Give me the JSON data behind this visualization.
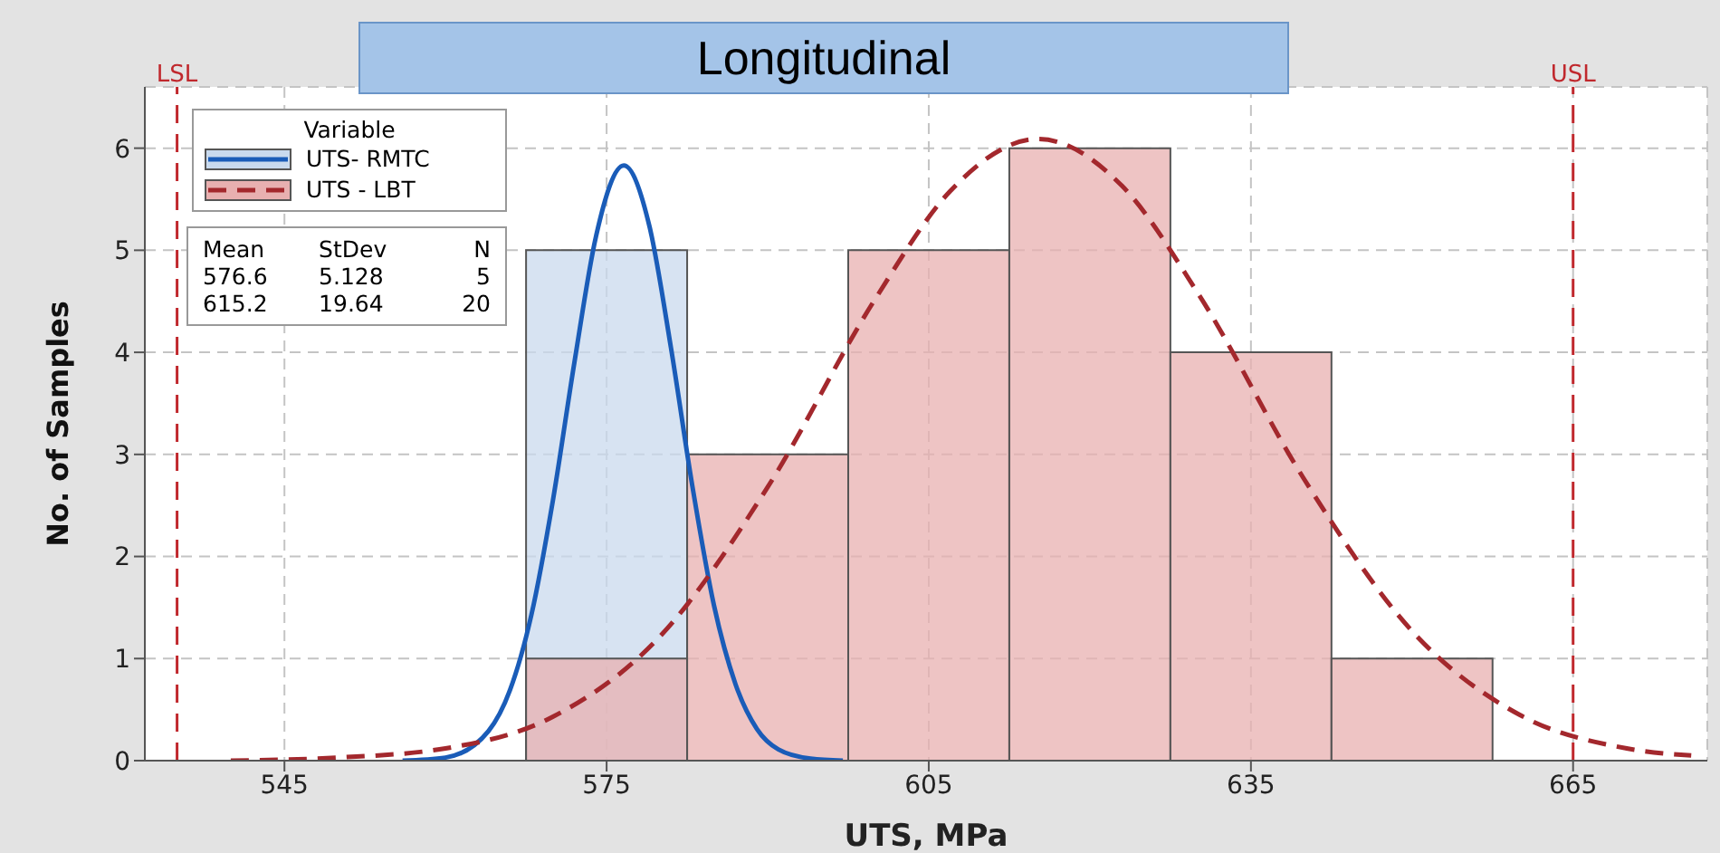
{
  "chart_data": {
    "type": "histogram",
    "title": "Longitudinal",
    "xlabel": "UTS, MPa",
    "ylabel": "No. of Samples",
    "legend_title": "Variable",
    "xlim": [
      532,
      677.5
    ],
    "ylim": [
      0,
      6.6
    ],
    "xticks": [
      545,
      575,
      605,
      635,
      665
    ],
    "yticks": [
      0,
      1,
      2,
      3,
      4,
      5,
      6
    ],
    "grid": true,
    "legend": "top left",
    "series": [
      {
        "name": "UTS- RMTC",
        "color": "#c9daee",
        "bins": [
          567.5,
          582.5
        ],
        "values": [
          5
        ]
      },
      {
        "name": "UTS - LBT",
        "color": "#e8b0b0",
        "bins": [
          567.5,
          582.5,
          597.5,
          612.5,
          627.5,
          642.5,
          657.5
        ],
        "values": [
          1,
          3,
          5,
          6,
          4,
          1
        ]
      },
      {
        "type": "line",
        "color": "#1a5cb8",
        "line_style": "solid",
        "marker": "none",
        "x": [
          556,
          560,
          564,
          566,
          568,
          570,
          572,
          574,
          576.6,
          579,
          581,
          583,
          585,
          587,
          589,
          591,
          594,
          597
        ],
        "values": [
          0.0,
          0.03,
          0.29,
          0.69,
          1.43,
          2.55,
          3.9,
          5.13,
          5.83,
          5.23,
          4.04,
          2.68,
          1.52,
          0.75,
          0.31,
          0.11,
          0.02,
          0.0
        ]
      },
      {
        "type": "line",
        "color": "#a3282d",
        "line_style": "dashed",
        "marker": "none",
        "x": [
          540,
          550,
          560,
          570,
          580,
          590,
          600,
          607,
          615.2,
          623,
          630,
          640,
          650,
          660,
          670,
          676
        ],
        "values": [
          0.0,
          0.03,
          0.12,
          0.43,
          1.22,
          2.68,
          4.52,
          5.58,
          6.09,
          5.63,
          4.59,
          2.75,
          1.27,
          0.45,
          0.12,
          0.05
        ]
      }
    ],
    "ref_lines": [
      {
        "axis": "x",
        "value": 535,
        "label": "LSL",
        "color": "#c0282d",
        "line_style": "dashed"
      },
      {
        "axis": "x",
        "value": 665,
        "label": "USL",
        "color": "#c0282d",
        "line_style": "dashed"
      }
    ],
    "annotations": [
      "Mean StDev N",
      "576.6 5.128 5",
      "615.2 19.64 20"
    ]
  }
}
